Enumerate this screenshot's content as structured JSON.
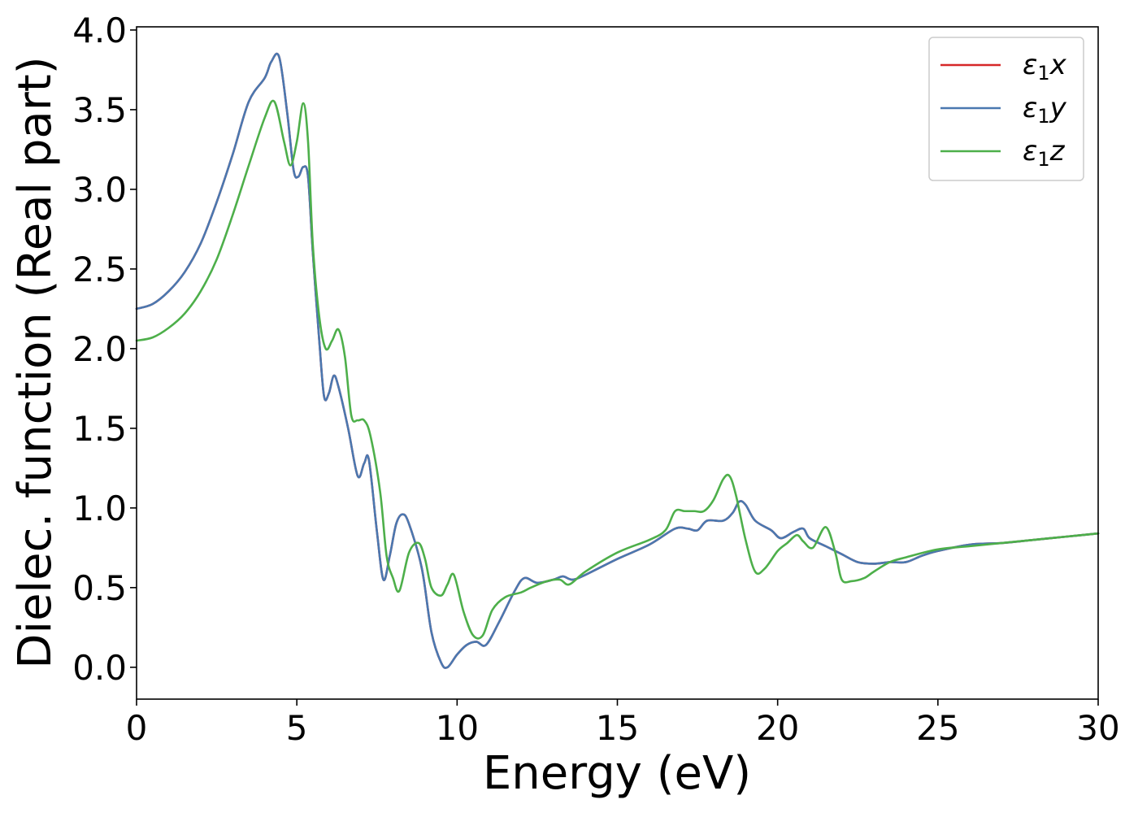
{
  "chart_data": {
    "type": "line",
    "title": "",
    "xlabel": "Energy (eV)",
    "ylabel": "Dielec. function (Real part)",
    "xlim": [
      0,
      30
    ],
    "ylim": [
      -0.2,
      4.02
    ],
    "xticks": [
      0,
      5,
      10,
      15,
      20,
      25,
      30
    ],
    "xtick_labels": [
      "0",
      "5",
      "10",
      "15",
      "20",
      "25",
      "30"
    ],
    "yticks": [
      0.0,
      0.5,
      1.0,
      1.5,
      2.0,
      2.5,
      3.0,
      3.5,
      4.0
    ],
    "ytick_labels": [
      "0.0",
      "0.5",
      "1.0",
      "1.5",
      "2.0",
      "2.5",
      "3.0",
      "3.5",
      "4.0"
    ],
    "grid": false,
    "legend_position": "top-right",
    "series": [
      {
        "name_symbol": "ε",
        "name_subscript": "1",
        "name_suffix": "x",
        "color": "#d62728",
        "x": [
          0,
          0.5,
          1,
          1.5,
          2,
          2.5,
          3,
          3.5,
          4,
          4.2,
          4.45,
          4.7,
          4.9,
          5.05,
          5.2,
          5.35,
          5.5,
          5.7,
          5.85,
          6.0,
          6.15,
          6.3,
          6.6,
          6.9,
          7.1,
          7.25,
          7.5,
          7.7,
          7.9,
          8.1,
          8.3,
          8.5,
          8.9,
          9.2,
          9.5,
          9.7,
          10.0,
          10.3,
          10.6,
          10.9,
          11.3,
          11.8,
          12.1,
          12.5,
          13.0,
          13.3,
          13.6,
          14.0,
          15.0,
          16.0,
          16.8,
          17.2,
          17.5,
          17.8,
          18.3,
          18.6,
          18.8,
          19.0,
          19.3,
          19.8,
          20.1,
          20.5,
          20.8,
          21.0,
          21.5,
          22.0,
          22.5,
          23.0,
          23.5,
          24.0,
          24.5,
          25.0,
          26.0,
          27.0,
          28.0,
          29.0,
          30.0
        ],
        "y": [
          2.25,
          2.28,
          2.36,
          2.48,
          2.66,
          2.92,
          3.22,
          3.55,
          3.7,
          3.8,
          3.83,
          3.48,
          3.12,
          3.08,
          3.14,
          3.08,
          2.6,
          2.05,
          1.7,
          1.72,
          1.83,
          1.76,
          1.5,
          1.2,
          1.28,
          1.3,
          0.85,
          0.55,
          0.7,
          0.9,
          0.96,
          0.9,
          0.62,
          0.22,
          0.03,
          0.0,
          0.08,
          0.14,
          0.16,
          0.14,
          0.28,
          0.48,
          0.56,
          0.53,
          0.55,
          0.57,
          0.55,
          0.58,
          0.68,
          0.77,
          0.87,
          0.87,
          0.86,
          0.92,
          0.92,
          0.97,
          1.04,
          1.02,
          0.92,
          0.86,
          0.81,
          0.85,
          0.87,
          0.81,
          0.76,
          0.71,
          0.66,
          0.65,
          0.66,
          0.66,
          0.7,
          0.73,
          0.77,
          0.78,
          0.8,
          0.82,
          0.84
        ]
      },
      {
        "name_symbol": "ε",
        "name_subscript": "1",
        "name_suffix": "y",
        "color": "#4a78b0",
        "x": [
          0,
          0.5,
          1,
          1.5,
          2,
          2.5,
          3,
          3.5,
          4,
          4.2,
          4.45,
          4.7,
          4.9,
          5.05,
          5.2,
          5.35,
          5.5,
          5.7,
          5.85,
          6.0,
          6.15,
          6.3,
          6.6,
          6.9,
          7.1,
          7.25,
          7.5,
          7.7,
          7.9,
          8.1,
          8.3,
          8.5,
          8.9,
          9.2,
          9.5,
          9.7,
          10.0,
          10.3,
          10.6,
          10.9,
          11.3,
          11.8,
          12.1,
          12.5,
          13.0,
          13.3,
          13.6,
          14.0,
          15.0,
          16.0,
          16.8,
          17.2,
          17.5,
          17.8,
          18.3,
          18.6,
          18.8,
          19.0,
          19.3,
          19.8,
          20.1,
          20.5,
          20.8,
          21.0,
          21.5,
          22.0,
          22.5,
          23.0,
          23.5,
          24.0,
          24.5,
          25.0,
          26.0,
          27.0,
          28.0,
          29.0,
          30.0
        ],
        "y": [
          2.25,
          2.28,
          2.36,
          2.48,
          2.66,
          2.92,
          3.22,
          3.55,
          3.7,
          3.8,
          3.83,
          3.48,
          3.12,
          3.08,
          3.14,
          3.08,
          2.6,
          2.05,
          1.7,
          1.72,
          1.83,
          1.76,
          1.5,
          1.2,
          1.28,
          1.3,
          0.85,
          0.55,
          0.7,
          0.9,
          0.96,
          0.9,
          0.62,
          0.22,
          0.03,
          0.0,
          0.08,
          0.14,
          0.16,
          0.14,
          0.28,
          0.48,
          0.56,
          0.53,
          0.55,
          0.57,
          0.55,
          0.58,
          0.68,
          0.77,
          0.87,
          0.87,
          0.86,
          0.92,
          0.92,
          0.97,
          1.04,
          1.02,
          0.92,
          0.86,
          0.81,
          0.85,
          0.87,
          0.81,
          0.76,
          0.71,
          0.66,
          0.65,
          0.66,
          0.66,
          0.7,
          0.73,
          0.77,
          0.78,
          0.8,
          0.82,
          0.84
        ]
      },
      {
        "name_symbol": "ε",
        "name_subscript": "1",
        "name_suffix": "z",
        "color": "#4daf4a",
        "x": [
          0,
          0.5,
          1,
          1.5,
          2,
          2.5,
          3,
          3.5,
          4,
          4.3,
          4.6,
          4.8,
          5.0,
          5.2,
          5.35,
          5.5,
          5.7,
          5.9,
          6.1,
          6.3,
          6.5,
          6.7,
          6.9,
          7.1,
          7.3,
          7.6,
          7.8,
          8.0,
          8.2,
          8.5,
          8.8,
          9.0,
          9.2,
          9.5,
          9.7,
          9.9,
          10.2,
          10.5,
          10.8,
          11.1,
          11.5,
          12.0,
          12.3,
          12.8,
          13.2,
          13.5,
          14.0,
          15.0,
          16.0,
          16.5,
          16.8,
          17.1,
          17.4,
          17.7,
          18.0,
          18.3,
          18.5,
          18.7,
          19.0,
          19.3,
          19.6,
          20.0,
          20.3,
          20.6,
          20.8,
          21.1,
          21.5,
          21.8,
          22.0,
          22.3,
          22.7,
          23.0,
          23.5,
          24.0,
          25.0,
          26.0,
          27.0,
          28.0,
          29.0,
          30.0
        ],
        "y": [
          2.05,
          2.07,
          2.13,
          2.22,
          2.36,
          2.56,
          2.84,
          3.15,
          3.45,
          3.55,
          3.3,
          3.15,
          3.3,
          3.54,
          3.3,
          2.65,
          2.2,
          2.0,
          2.05,
          2.12,
          1.95,
          1.58,
          1.55,
          1.55,
          1.45,
          1.1,
          0.7,
          0.56,
          0.48,
          0.72,
          0.78,
          0.68,
          0.5,
          0.45,
          0.52,
          0.58,
          0.35,
          0.2,
          0.2,
          0.36,
          0.44,
          0.47,
          0.5,
          0.54,
          0.55,
          0.52,
          0.6,
          0.72,
          0.8,
          0.86,
          0.98,
          0.98,
          0.98,
          0.98,
          1.05,
          1.18,
          1.2,
          1.08,
          0.8,
          0.6,
          0.62,
          0.73,
          0.78,
          0.83,
          0.79,
          0.75,
          0.88,
          0.72,
          0.55,
          0.54,
          0.56,
          0.6,
          0.66,
          0.69,
          0.74,
          0.76,
          0.78,
          0.8,
          0.82,
          0.84
        ]
      }
    ]
  }
}
